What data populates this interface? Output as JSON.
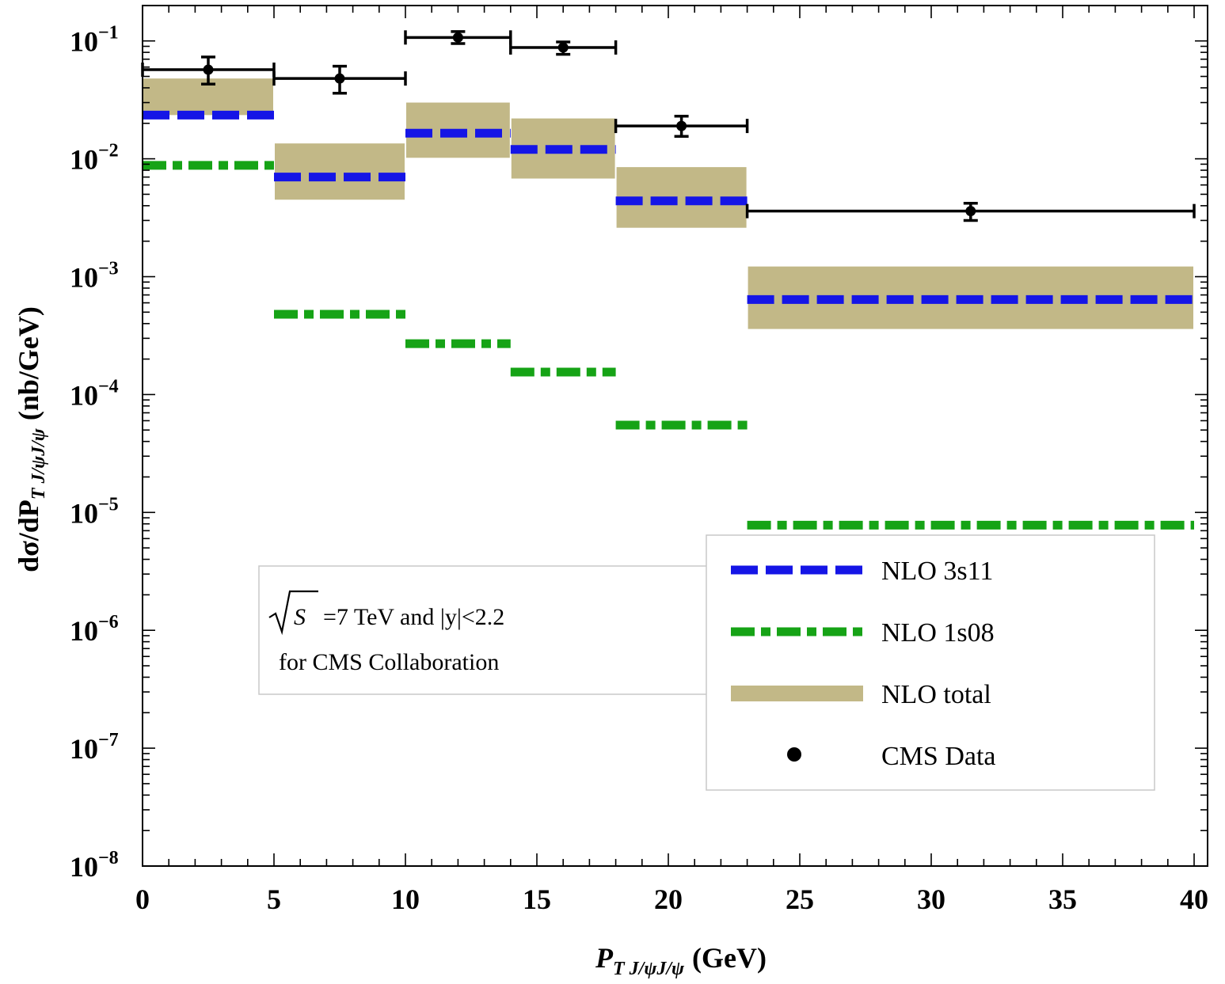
{
  "chart_data": {
    "type": "step-band",
    "xlabel": "P",
    "xlabel_sub": "T J/ψJ/ψ",
    "xlabel_unit": "(GeV)",
    "ylabel_prefix": "dσ/dP",
    "ylabel_sub": "T J/ψJ/ψ",
    "ylabel_unit": "(nb/GeV)",
    "xlim": [
      0,
      40
    ],
    "ylim_log10": [
      -8,
      -0.7
    ],
    "xticks": [
      0,
      5,
      10,
      15,
      20,
      25,
      30,
      35,
      40
    ],
    "yticks": [
      {
        "base": "10",
        "exp": "−1",
        "value": -1
      },
      {
        "base": "10",
        "exp": "−2",
        "value": -2
      },
      {
        "base": "10",
        "exp": "−3",
        "value": -3
      },
      {
        "base": "10",
        "exp": "−4",
        "value": -4
      },
      {
        "base": "10",
        "exp": "−5",
        "value": -5
      },
      {
        "base": "10",
        "exp": "−6",
        "value": -6
      },
      {
        "base": "10",
        "exp": "−7",
        "value": -7
      },
      {
        "base": "10",
        "exp": "−8",
        "value": -8
      }
    ],
    "bins": [
      [
        0,
        5
      ],
      [
        5,
        10
      ],
      [
        10,
        14
      ],
      [
        14,
        18
      ],
      [
        18,
        23
      ],
      [
        23,
        40
      ]
    ],
    "series": [
      {
        "name": "NLO 3s11",
        "style": "dashed",
        "color": "#1515e6",
        "values": [
          0.0235,
          0.007,
          0.0165,
          0.012,
          0.0044,
          0.00064
        ]
      },
      {
        "name": "NLO 1s08",
        "style": "dashdot",
        "color": "#16a316",
        "values": [
          0.0088,
          0.00048,
          0.00027,
          0.000155,
          5.5e-05,
          7.8e-06
        ]
      },
      {
        "name": "NLO total",
        "style": "band",
        "color": "#c2b887",
        "low": [
          0.0235,
          0.0045,
          0.0102,
          0.0068,
          0.0026,
          0.00036
        ],
        "high": [
          0.048,
          0.0135,
          0.03,
          0.022,
          0.0085,
          0.00122
        ]
      },
      {
        "name": "CMS Data",
        "style": "points",
        "color": "#000000",
        "x": [
          2.5,
          7.5,
          12,
          16,
          20.5,
          31.5
        ],
        "y": [
          0.057,
          0.048,
          0.107,
          0.088,
          0.019,
          0.0036
        ],
        "yerr_low": [
          0.043,
          0.036,
          0.095,
          0.077,
          0.0155,
          0.003
        ],
        "yerr_high": [
          0.073,
          0.061,
          0.12,
          0.098,
          0.023,
          0.0042
        ],
        "xerr": [
          [
            0,
            5
          ],
          [
            5,
            10
          ],
          [
            10,
            14
          ],
          [
            14,
            18
          ],
          [
            18,
            23
          ],
          [
            23,
            40
          ]
        ]
      }
    ],
    "legend": [
      {
        "label": "NLO 3s11"
      },
      {
        "label": "NLO 1s08"
      },
      {
        "label": "NLO total"
      },
      {
        "label": "CMS Data"
      }
    ],
    "annotation": {
      "line1_sym": "S",
      "line1_text": "=7 TeV and |y|<2.2",
      "line2": "for CMS Collaboration"
    }
  }
}
